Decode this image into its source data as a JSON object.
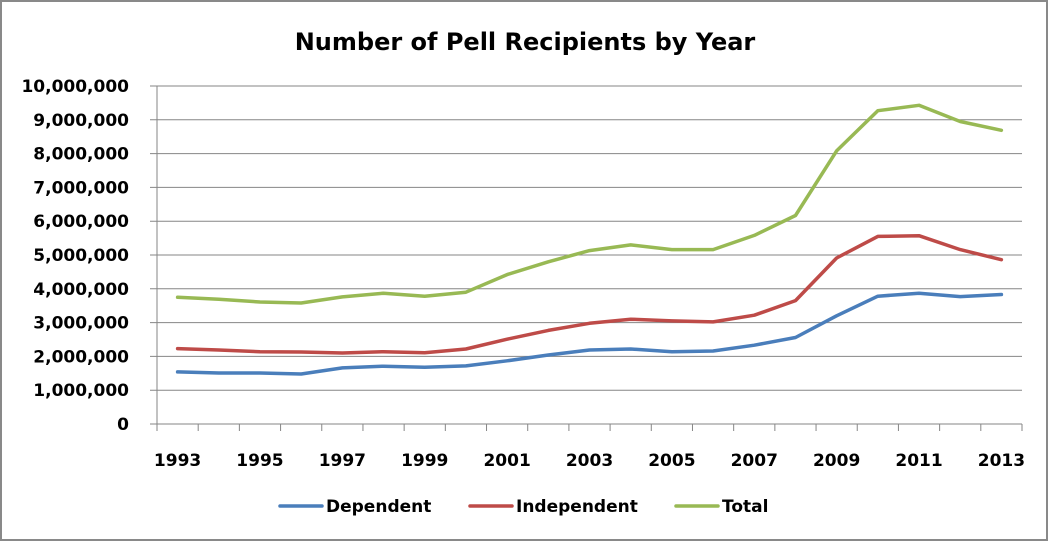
{
  "chart_data": {
    "type": "line",
    "title": "Number of Pell Recipients by Year",
    "xlabel": "",
    "ylabel": "",
    "x": [
      1993,
      1994,
      1995,
      1996,
      1997,
      1998,
      1999,
      2000,
      2001,
      2002,
      2003,
      2004,
      2005,
      2006,
      2007,
      2008,
      2009,
      2010,
      2011,
      2012,
      2013
    ],
    "x_tick_labels": [
      "1993",
      "1995",
      "1997",
      "1999",
      "2001",
      "2003",
      "2005",
      "2007",
      "2009",
      "2011",
      "2013"
    ],
    "y_tick_labels": [
      "0",
      "1,000,000",
      "2,000,000",
      "3,000,000",
      "4,000,000",
      "5,000,000",
      "6,000,000",
      "7,000,000",
      "8,000,000",
      "9,000,000",
      "10,000,000"
    ],
    "ylim": [
      0,
      10000000
    ],
    "grid": "horizontal",
    "legend_position": "bottom",
    "series": [
      {
        "name": "Dependent",
        "color": "#4a7ebb",
        "values": [
          1540000,
          1510000,
          1510000,
          1480000,
          1660000,
          1710000,
          1680000,
          1720000,
          1870000,
          2040000,
          2190000,
          2220000,
          2140000,
          2160000,
          2330000,
          2560000,
          3200000,
          3780000,
          3870000,
          3770000,
          3830000
        ]
      },
      {
        "name": "Independent",
        "color": "#be4b48",
        "values": [
          2230000,
          2190000,
          2140000,
          2130000,
          2100000,
          2140000,
          2110000,
          2220000,
          2510000,
          2770000,
          2980000,
          3100000,
          3050000,
          3020000,
          3220000,
          3650000,
          4910000,
          5550000,
          5570000,
          5160000,
          4860000
        ]
      },
      {
        "name": "Total",
        "color": "#98b954",
        "values": [
          3750000,
          3690000,
          3610000,
          3580000,
          3760000,
          3870000,
          3780000,
          3900000,
          4420000,
          4800000,
          5130000,
          5300000,
          5160000,
          5160000,
          5580000,
          6170000,
          8080000,
          9270000,
          9430000,
          8950000,
          8690000
        ]
      }
    ]
  }
}
